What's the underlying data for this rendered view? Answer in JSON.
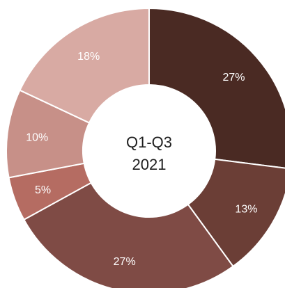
{
  "chart_data": {
    "type": "pie",
    "variant": "donut",
    "center_label_lines": [
      "Q1-Q3",
      "2021"
    ],
    "slices": [
      {
        "label": "27%",
        "value": 27,
        "color": "#4a2a23"
      },
      {
        "label": "13%",
        "value": 13,
        "color": "#6b3e36"
      },
      {
        "label": "27%",
        "value": 27,
        "color": "#7f4b45"
      },
      {
        "label": "5%",
        "value": 5,
        "color": "#b56c62"
      },
      {
        "label": "10%",
        "value": 10,
        "color": "#c79088"
      },
      {
        "label": "18%",
        "value": 18,
        "color": "#d8aaa3"
      }
    ],
    "start_angle_deg": 0,
    "direction": "clockwise"
  }
}
